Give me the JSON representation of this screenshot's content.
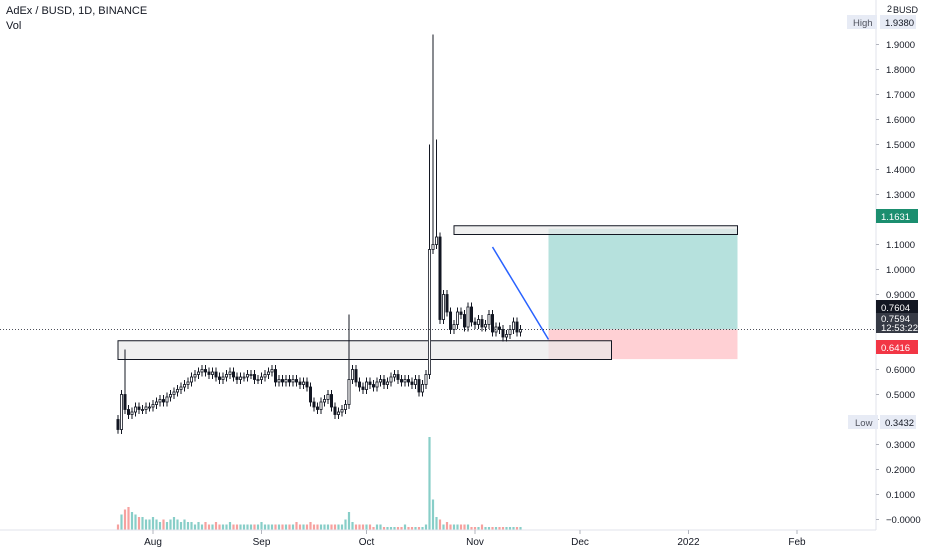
{
  "header": {
    "symbol_line": "AdEx / BUSD, 1D, BINANCE",
    "volume_label": "Vol"
  },
  "chart_data": {
    "type": "candlestick",
    "currency": "BUSD",
    "y_axis_top_tick": "2",
    "y_ticks": [
      {
        "value": 1.9,
        "label": "1.9000"
      },
      {
        "value": 1.8,
        "label": "1.8000"
      },
      {
        "value": 1.7,
        "label": "1.7000"
      },
      {
        "value": 1.6,
        "label": "1.6000"
      },
      {
        "value": 1.5,
        "label": "1.5000"
      },
      {
        "value": 1.4,
        "label": "1.4000"
      },
      {
        "value": 1.3,
        "label": "1.3000"
      },
      {
        "value": 1.2,
        "label": "1.2000"
      },
      {
        "value": 1.1,
        "label": "1.1000"
      },
      {
        "value": 1.0,
        "label": "1.0000"
      },
      {
        "value": 0.9,
        "label": "0.9000"
      },
      {
        "value": 0.6,
        "label": "0.6000"
      },
      {
        "value": 0.5,
        "label": "0.5000"
      },
      {
        "value": 0.4,
        "label": "0.4000"
      },
      {
        "value": 0.3,
        "label": "0.3000"
      },
      {
        "value": 0.2,
        "label": "0.2000"
      },
      {
        "value": 0.1,
        "label": "0.1000"
      },
      {
        "value": 0.0,
        "label": "−0.0000"
      }
    ],
    "x_ticks": [
      {
        "date": "2021-08-01",
        "label": "Aug"
      },
      {
        "date": "2021-09-01",
        "label": "Sep"
      },
      {
        "date": "2021-10-01",
        "label": "Oct"
      },
      {
        "date": "2021-11-01",
        "label": "Nov"
      },
      {
        "date": "2021-12-01",
        "label": "Dec"
      },
      {
        "date": "2022-01-01",
        "label": "2022"
      },
      {
        "date": "2022-02-01",
        "label": "Feb"
      }
    ],
    "first_candle_date": "2021-07-22",
    "last_candle_date": "2021-11-23",
    "high": {
      "label": "High",
      "value": "1.9380"
    },
    "low": {
      "label": "Low",
      "value": "0.3432"
    },
    "last_price": {
      "value": "0.7604",
      "countdown": "12:53:22",
      "current": "0.7594"
    },
    "target": {
      "value": "1.1631"
    },
    "stop": {
      "value": "0.6416"
    },
    "resistance_zone": {
      "from_date": "2021-10-26",
      "to_date": "2022-01-15",
      "low": 1.14,
      "high": 1.175
    },
    "support_zone": {
      "from_date": "2021-07-22",
      "to_date": "2021-12-10",
      "low": 0.64,
      "high": 0.715
    },
    "trendline": {
      "from": {
        "date": "2021-11-06",
        "value": 1.09
      },
      "to": {
        "date": "2021-11-22",
        "value": 0.72
      }
    },
    "long_position": {
      "from_date": "2021-11-22",
      "to_date": "2022-01-15",
      "entry": 0.7604,
      "target": 1.1631,
      "stop": 0.6416
    },
    "colors": {
      "up": "#26a69a",
      "down": "#ef5350",
      "candle": "#131722",
      "profit_zone": "#b2dfdb",
      "loss_zone": "#ffcdd2",
      "zone_fill": "#e9e9e9",
      "trendline": "#2962ff",
      "target_badge": "#1b8e6f",
      "stop_badge": "#f23645",
      "range_badge": "#e7ebf5"
    }
  }
}
